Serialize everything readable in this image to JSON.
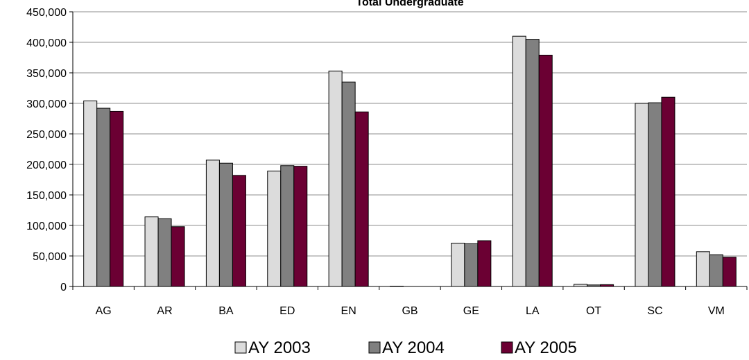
{
  "chart_data": {
    "type": "bar",
    "title": "Total Undergraduate",
    "xlabel": "",
    "ylabel": "",
    "categories": [
      "AG",
      "AR",
      "BA",
      "ED",
      "EN",
      "GB",
      "GE",
      "LA",
      "OT",
      "SC",
      "VM"
    ],
    "series": [
      {
        "name": "AY 2003",
        "color": "#dcdcdc",
        "values": [
          304000,
          114000,
          207000,
          189000,
          353000,
          500,
          71000,
          410000,
          3500,
          300000,
          57000
        ]
      },
      {
        "name": "AY 2004",
        "color": "#808080",
        "values": [
          292000,
          111000,
          202000,
          198000,
          335000,
          0,
          70000,
          405000,
          2500,
          301000,
          52000
        ]
      },
      {
        "name": "AY 2005",
        "color": "#6b0033",
        "values": [
          287000,
          98000,
          182000,
          197000,
          286000,
          0,
          75000,
          379000,
          3000,
          310000,
          48000
        ]
      }
    ],
    "ylim": [
      0,
      450000
    ],
    "yticks": [
      0,
      50000,
      100000,
      150000,
      200000,
      250000,
      300000,
      350000,
      400000,
      450000
    ],
    "ytick_labels": [
      "0",
      "50,000",
      "100,000",
      "150,000",
      "200,000",
      "250,000",
      "300,000",
      "350,000",
      "400,000",
      "450,000"
    ],
    "grid": true,
    "legend_position": "bottom"
  }
}
